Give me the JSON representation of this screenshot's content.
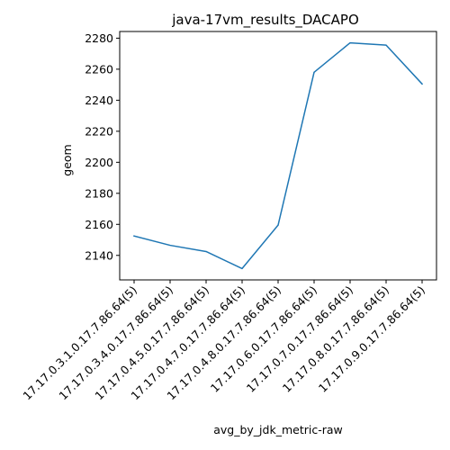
{
  "chart_data": {
    "type": "line",
    "title": "java-17vm_results_DACAPO",
    "xlabel": "avg_by_jdk_metric-raw",
    "ylabel": "geom",
    "categories": [
      "17.17.0.3.1.0.17.7.86.64(5)",
      "17.17.0.3.4.0.17.7.86.64(5)",
      "17.17.0.4.5.0.17.7.86.64(5)",
      "17.17.0.4.7.0.17.7.86.64(5)",
      "17.17.0.4.8.0.17.7.86.64(5)",
      "17.17.0.6.0.17.7.86.64(5)",
      "17.17.0.7.0.17.7.86.64(5)",
      "17.17.0.8.0.17.7.86.64(5)",
      "17.17.0.9.0.17.7.86.64(5)"
    ],
    "series": [
      {
        "values": [
          2152.5,
          2146.5,
          2142.5,
          2131.5,
          2159.5,
          2258,
          2277,
          2275.5,
          2250.5
        ]
      }
    ],
    "yticks": [
      2140,
      2160,
      2180,
      2200,
      2220,
      2240,
      2260,
      2280
    ],
    "ylim": [
      2124.2,
      2284.3
    ],
    "grid": false,
    "line_color": "#1f77b4"
  }
}
